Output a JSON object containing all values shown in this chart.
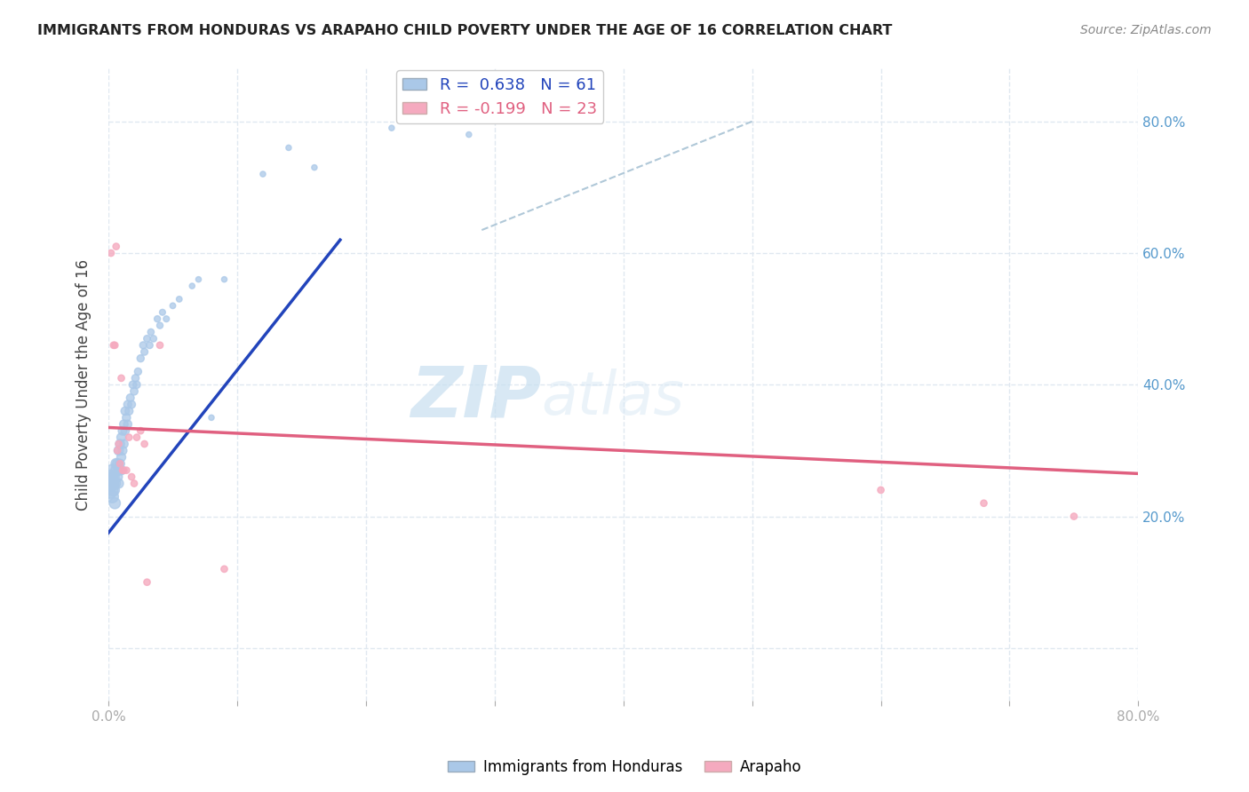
{
  "title": "IMMIGRANTS FROM HONDURAS VS ARAPAHO CHILD POVERTY UNDER THE AGE OF 16 CORRELATION CHART",
  "source": "Source: ZipAtlas.com",
  "ylabel": "Child Poverty Under the Age of 16",
  "xlim": [
    0.0,
    0.8
  ],
  "ylim": [
    -0.08,
    0.88
  ],
  "blue_R": 0.638,
  "blue_N": 61,
  "pink_R": -0.199,
  "pink_N": 23,
  "blue_color": "#aac8e8",
  "pink_color": "#f5aabf",
  "blue_line_color": "#2244bb",
  "pink_line_color": "#e06080",
  "diagonal_line_color": "#b0c8d8",
  "legend_blue_label": "Immigrants from Honduras",
  "legend_pink_label": "Arapaho",
  "watermark_zip": "ZIP",
  "watermark_atlas": "atlas",
  "blue_scatter_x": [
    0.001,
    0.002,
    0.002,
    0.003,
    0.003,
    0.003,
    0.004,
    0.004,
    0.005,
    0.005,
    0.006,
    0.006,
    0.007,
    0.007,
    0.008,
    0.008,
    0.008,
    0.009,
    0.009,
    0.01,
    0.01,
    0.01,
    0.011,
    0.011,
    0.012,
    0.012,
    0.013,
    0.013,
    0.014,
    0.015,
    0.015,
    0.016,
    0.017,
    0.018,
    0.019,
    0.02,
    0.021,
    0.022,
    0.023,
    0.025,
    0.027,
    0.028,
    0.03,
    0.032,
    0.033,
    0.035,
    0.038,
    0.04,
    0.042,
    0.045,
    0.05,
    0.055,
    0.065,
    0.07,
    0.08,
    0.09,
    0.12,
    0.14,
    0.16,
    0.22,
    0.28
  ],
  "blue_scatter_y": [
    0.24,
    0.25,
    0.26,
    0.23,
    0.25,
    0.27,
    0.24,
    0.26,
    0.22,
    0.25,
    0.27,
    0.28,
    0.26,
    0.28,
    0.25,
    0.27,
    0.3,
    0.28,
    0.31,
    0.27,
    0.29,
    0.32,
    0.3,
    0.33,
    0.31,
    0.34,
    0.33,
    0.36,
    0.35,
    0.34,
    0.37,
    0.36,
    0.38,
    0.37,
    0.4,
    0.39,
    0.41,
    0.4,
    0.42,
    0.44,
    0.46,
    0.45,
    0.47,
    0.46,
    0.48,
    0.47,
    0.5,
    0.49,
    0.51,
    0.5,
    0.52,
    0.53,
    0.55,
    0.56,
    0.35,
    0.56,
    0.72,
    0.76,
    0.73,
    0.79,
    0.78
  ],
  "blue_scatter_size": [
    180,
    150,
    120,
    100,
    100,
    90,
    90,
    85,
    80,
    80,
    75,
    70,
    65,
    65,
    60,
    60,
    58,
    55,
    55,
    55,
    52,
    52,
    50,
    50,
    48,
    48,
    46,
    46,
    44,
    44,
    42,
    42,
    40,
    40,
    38,
    38,
    36,
    36,
    34,
    34,
    32,
    32,
    30,
    30,
    28,
    28,
    26,
    26,
    24,
    24,
    22,
    22,
    20,
    20,
    20,
    20,
    20,
    20,
    20,
    20,
    20
  ],
  "pink_scatter_x": [
    0.002,
    0.004,
    0.005,
    0.006,
    0.007,
    0.008,
    0.009,
    0.01,
    0.011,
    0.012,
    0.014,
    0.016,
    0.018,
    0.02,
    0.022,
    0.025,
    0.028,
    0.03,
    0.04,
    0.09,
    0.6,
    0.68,
    0.75
  ],
  "pink_scatter_y": [
    0.6,
    0.46,
    0.46,
    0.61,
    0.3,
    0.31,
    0.28,
    0.41,
    0.27,
    0.27,
    0.27,
    0.32,
    0.26,
    0.25,
    0.32,
    0.33,
    0.31,
    0.1,
    0.46,
    0.12,
    0.24,
    0.22,
    0.2
  ],
  "pink_scatter_size": [
    28,
    28,
    28,
    28,
    28,
    28,
    28,
    28,
    28,
    28,
    28,
    28,
    28,
    28,
    28,
    28,
    28,
    28,
    28,
    28,
    28,
    28,
    28
  ],
  "blue_line_x": [
    0.0,
    0.18
  ],
  "blue_line_y": [
    0.175,
    0.62
  ],
  "pink_line_x": [
    0.0,
    0.8
  ],
  "pink_line_y": [
    0.335,
    0.265
  ],
  "diag_line_x": [
    0.29,
    0.5
  ],
  "diag_line_y": [
    0.635,
    0.8
  ],
  "grid_color": "#e0e8f0",
  "right_tick_color": "#5599cc"
}
